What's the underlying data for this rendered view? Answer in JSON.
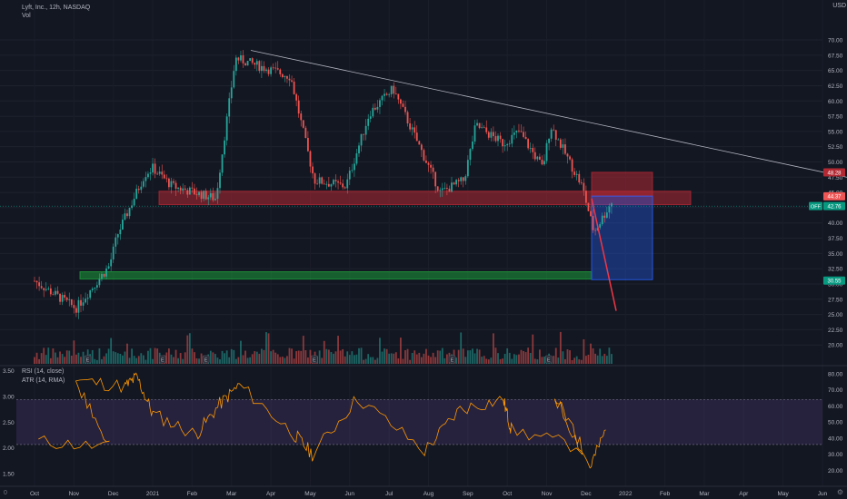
{
  "legend": {
    "main": "Lyft, Inc., 12h, NASDAQ",
    "vol": "Vol",
    "indicator1": "RSI (14, close)",
    "indicator2": "ATR (14, RMA)"
  },
  "currency": "USD",
  "footer_left": "0",
  "chart_data": [
    {
      "type": "candlestick",
      "title": "Lyft, Inc., 12h, NASDAQ",
      "y_axis_ticks": [
        "70.00",
        "67.50",
        "65.00",
        "62.50",
        "60.00",
        "57.50",
        "55.00",
        "52.50",
        "50.00",
        "47.50",
        "45.00",
        "42.50",
        "40.00",
        "37.50",
        "35.00",
        "32.50",
        "30.00",
        "27.50",
        "25.00",
        "22.50",
        "20.00"
      ],
      "y_range": [
        17.5,
        72
      ],
      "x_axis_ticks": [
        "Oct",
        "Nov",
        "Dec",
        "2021",
        "Feb",
        "Mar",
        "Apr",
        "May",
        "Jun",
        "Jul",
        "Aug",
        "Sep",
        "Oct",
        "Nov",
        "Dec",
        "2022",
        "Feb",
        "Mar",
        "Apr",
        "May",
        "Jun"
      ],
      "price_path": {
        "x": [
          "Oct",
          "Nov",
          "Nov",
          "Dec",
          "Dec",
          "2021",
          "2021",
          "Feb",
          "Mar",
          "Apr",
          "May",
          "May",
          "Jun",
          "Jul",
          "Aug",
          "Aug",
          "Sep",
          "Sep",
          "Oct",
          "Oct",
          "Nov",
          "Nov",
          "Dec",
          "Dec"
        ],
        "y": [
          30.5,
          26,
          33,
          38,
          48,
          49,
          46,
          44,
          67,
          64,
          47,
          46,
          58,
          62,
          45,
          47,
          56,
          53,
          55,
          49,
          56,
          46,
          38.5,
          44
        ]
      },
      "trendline": {
        "from": {
          "x": "Mar",
          "y": 68.3
        },
        "to": {
          "x": "Jun",
          "y": 46.3
        }
      },
      "projection": {
        "from": {
          "x": "Dec",
          "y": 44.0
        },
        "to": {
          "x": "2022",
          "y": 25.6
        }
      },
      "zones": [
        {
          "name": "resistance",
          "y_low": 43.0,
          "y_high": 45.2,
          "color": "#b22833"
        },
        {
          "name": "support",
          "y_low": 30.8,
          "y_high": 32.0,
          "color": "#1e9b3c"
        },
        {
          "name": "stop",
          "y_low": 44.4,
          "y_high": 48.3,
          "color": "#b22833"
        },
        {
          "name": "target",
          "y_low": 30.7,
          "y_high": 44.4,
          "color": "#2962ff"
        }
      ],
      "price_labels": [
        {
          "text": "48.28",
          "y": 48.28,
          "color": "#b22833"
        },
        {
          "text": "44.37",
          "y": 44.37,
          "color": "#e55"
        },
        {
          "text": "42.76",
          "y": 42.76,
          "color": "#089981",
          "prefix": "OFF"
        },
        {
          "text": "30.55",
          "y": 30.55,
          "color": "#089981"
        }
      ],
      "earnings_markers": [
        "Nov",
        "2021",
        "Feb",
        "May",
        "Aug",
        "Nov"
      ]
    },
    {
      "type": "line",
      "name": "RSI (14, close)",
      "color": "#ff9800",
      "right_ticks": [
        "80.00",
        "70.00",
        "60.00",
        "50.00",
        "40.00",
        "30.00",
        "20.00"
      ],
      "left_ticks": [
        "3.50",
        "3.00",
        "2.50",
        "2.00",
        "1.50"
      ],
      "band": [
        36,
        64
      ],
      "series_points": [
        {
          "x": "Oct",
          "y": 38
        },
        {
          "x": "Nov",
          "y": 34
        },
        {
          "x": "Nov",
          "y": 76
        },
        {
          "x": "Dec",
          "y": 72
        },
        {
          "x": "Dec",
          "y": 78
        },
        {
          "x": "2021",
          "y": 55
        },
        {
          "x": "Feb",
          "y": 42
        },
        {
          "x": "Feb",
          "y": 61
        },
        {
          "x": "Mar",
          "y": 73
        },
        {
          "x": "Apr",
          "y": 42
        },
        {
          "x": "May",
          "y": 30
        },
        {
          "x": "Jun",
          "y": 65
        },
        {
          "x": "Jul",
          "y": 32
        },
        {
          "x": "Aug",
          "y": 58
        },
        {
          "x": "Sep",
          "y": 64
        },
        {
          "x": "Oct",
          "y": 45
        },
        {
          "x": "Nov",
          "y": 34
        },
        {
          "x": "Nov",
          "y": 66
        },
        {
          "x": "Dec",
          "y": 22
        },
        {
          "x": "Dec",
          "y": 45
        }
      ]
    }
  ]
}
